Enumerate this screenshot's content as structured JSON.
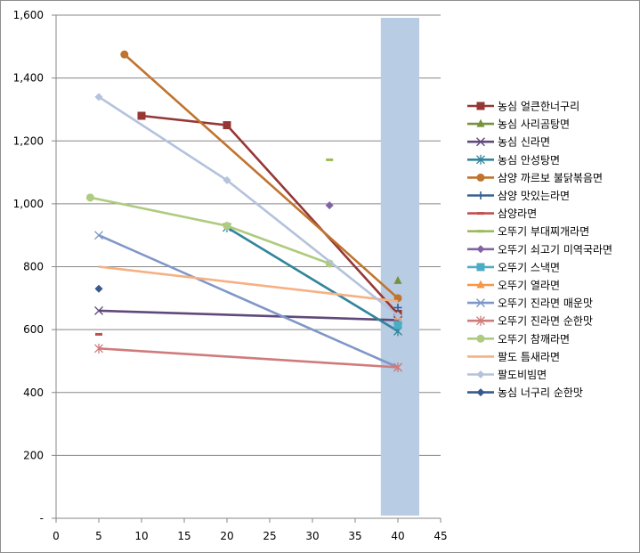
{
  "chart_data": {
    "type": "line",
    "title": "",
    "xlabel": "",
    "ylabel": "",
    "xlim": [
      0,
      45
    ],
    "ylim": [
      0,
      1600
    ],
    "x_ticks": [
      0,
      5,
      10,
      15,
      20,
      25,
      30,
      35,
      40,
      45
    ],
    "y_ticks": [
      0,
      200,
      400,
      600,
      800,
      1000,
      1200,
      1400,
      1600
    ],
    "x_tick_labels": [
      "0",
      "5",
      "10",
      "15",
      "20",
      "25",
      "30",
      "35",
      "40",
      "45"
    ],
    "y_tick_labels": [
      "-",
      "200",
      "400",
      "600",
      "800",
      "1,000",
      "1,200",
      "1,400",
      "1,600"
    ],
    "grid": "horizontal",
    "legend_position": "right",
    "highlight_band": {
      "x_range": [
        38,
        42.5
      ],
      "color": "#b8cce4"
    },
    "series": [
      {
        "name": "농심 얼큰한너구리",
        "color": "#953735",
        "marker": "square",
        "points": [
          [
            10,
            1280
          ],
          [
            20,
            1250
          ],
          [
            40,
            650
          ]
        ]
      },
      {
        "name": "농심 사리곰탕면",
        "color": "#76923c",
        "marker": "triangle",
        "points": [
          [
            40,
            755
          ]
        ]
      },
      {
        "name": "농심 신라면",
        "color": "#5f497a",
        "marker": "x",
        "points": [
          [
            5,
            660
          ],
          [
            40,
            630
          ]
        ]
      },
      {
        "name": "농심 안성탕면",
        "color": "#31859c",
        "marker": "star",
        "points": [
          [
            20,
            925
          ],
          [
            40,
            595
          ]
        ]
      },
      {
        "name": "삼양 까르보 불닭볶음면",
        "color": "#c0742e",
        "marker": "circle",
        "points": [
          [
            8,
            1475
          ],
          [
            40,
            700
          ]
        ]
      },
      {
        "name": "삼양 맛있는라면",
        "color": "#376092",
        "marker": "plus",
        "points": [
          [
            40,
            670
          ]
        ]
      },
      {
        "name": "삼양라면",
        "color": "#c0504d",
        "marker": "dash",
        "points": [
          [
            5,
            585
          ]
        ]
      },
      {
        "name": "오뚜기 부대찌개라면",
        "color": "#9bbb59",
        "marker": "dash",
        "points": [
          [
            32,
            1140
          ]
        ]
      },
      {
        "name": "오뚜기 쇠고기 미역국라면",
        "color": "#8064a2",
        "marker": "diamond",
        "points": [
          [
            32,
            995
          ]
        ]
      },
      {
        "name": "오뚜기 스낵면",
        "color": "#4bacc6",
        "marker": "square",
        "points": [
          [
            40,
            615
          ]
        ]
      },
      {
        "name": "오뚜기 열라면",
        "color": "#f79646",
        "marker": "triangle",
        "points": [
          [
            40,
            640
          ]
        ]
      },
      {
        "name": "오뚜기 진라면 매운맛",
        "color": "#7f97c7",
        "marker": "x",
        "points": [
          [
            5,
            900
          ],
          [
            40,
            480
          ]
        ]
      },
      {
        "name": "오뚜기 진라면 순한맛",
        "color": "#d07b7b",
        "marker": "star",
        "points": [
          [
            5,
            540
          ],
          [
            40,
            480
          ]
        ]
      },
      {
        "name": "오뚜기 참깨라면",
        "color": "#afcb7f",
        "marker": "circle",
        "points": [
          [
            4,
            1020
          ],
          [
            20,
            930
          ],
          [
            32,
            810
          ]
        ]
      },
      {
        "name": "팔도 틈새라면",
        "color": "#f6b083",
        "marker": "none",
        "points": [
          [
            5,
            800
          ],
          [
            40,
            690
          ]
        ]
      },
      {
        "name": "팔도비빔면",
        "color": "#b4c2dc",
        "marker": "diamond",
        "points": [
          [
            5,
            1340
          ],
          [
            20,
            1075
          ],
          [
            40,
            645
          ]
        ]
      },
      {
        "name": "농심 너구리 순한맛",
        "color": "#375a8c",
        "marker": "diamond",
        "points": [
          [
            5,
            730
          ]
        ]
      }
    ]
  }
}
